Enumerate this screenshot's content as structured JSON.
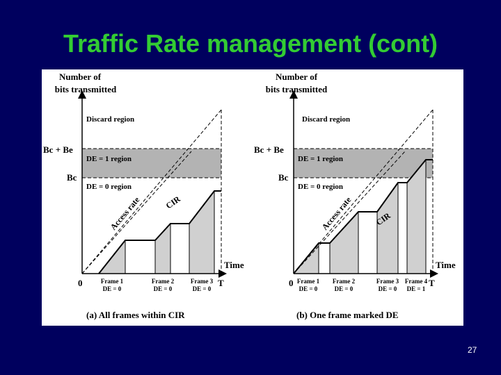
{
  "slide": {
    "title": "Traffic Rate management (cont)",
    "page_number": "27"
  },
  "diagram": {
    "panels": [
      {
        "ylabel_line1": "Number of",
        "ylabel_line2": "bits transmitted",
        "discard": "Discard region",
        "de1": "DE = 1 region",
        "de0": "DE = 0 region",
        "bc_be": "Bc + Be",
        "bc": "Bc",
        "access": "Access rate",
        "cir": "CIR",
        "time": "Time",
        "origin": "0",
        "tmark": "T",
        "caption": "(a) All frames within CIR",
        "frames": [
          {
            "name": "Frame 1",
            "de": "DE = 0"
          },
          {
            "name": "Frame 2",
            "de": "DE = 0"
          },
          {
            "name": "Frame 3",
            "de": "DE = 0"
          }
        ]
      },
      {
        "ylabel_line1": "Number of",
        "ylabel_line2": "bits transmitted",
        "discard": "Discard region",
        "de1": "DE = 1 region",
        "de0": "DE = 0 region",
        "bc_be": "Bc + Be",
        "bc": "Bc",
        "access": "Access rate",
        "cir": "CIR",
        "time": "Time",
        "origin": "0",
        "tmark": "T",
        "caption": "(b) One frame marked DE",
        "frames": [
          {
            "name": "Frame 1",
            "de": "DE = 0"
          },
          {
            "name": "Frame 2",
            "de": "DE = 0"
          },
          {
            "name": "Frame 3",
            "de": "DE = 0"
          },
          {
            "name": "Frame 4",
            "de": "DE = 1"
          }
        ]
      }
    ]
  }
}
